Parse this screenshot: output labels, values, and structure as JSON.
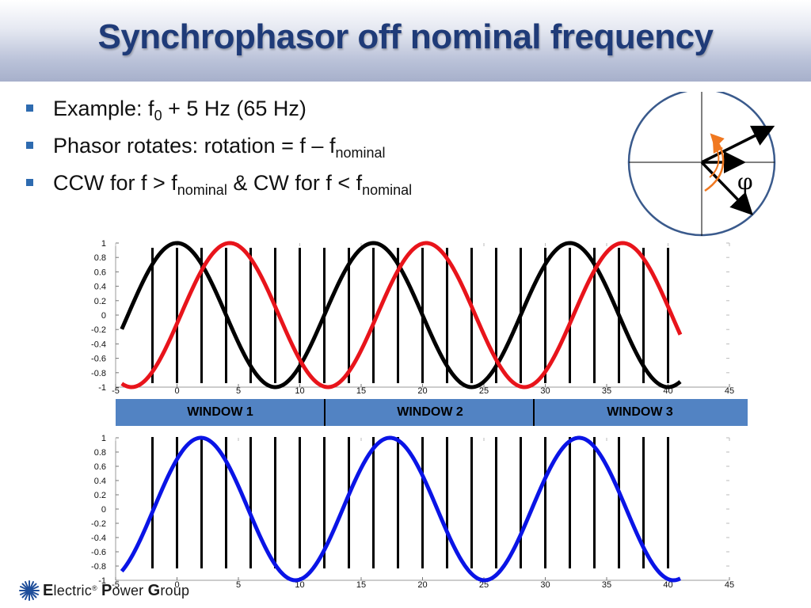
{
  "title": "Synchrophasor off nominal frequency",
  "bullets": [
    {
      "parts": [
        {
          "t": "Example: f"
        },
        {
          "t": "0",
          "sub": true
        },
        {
          "t": " + 5 Hz (65 Hz)"
        }
      ]
    },
    {
      "parts": [
        {
          "t": "Phasor rotates: rotation = f – f"
        },
        {
          "t": "nominal",
          "sub": true
        }
      ]
    },
    {
      "parts": [
        {
          "t": "CCW for  f > f"
        },
        {
          "t": "nominal",
          "sub": true
        },
        {
          "t": " & CW for  f < f"
        },
        {
          "t": "nominal",
          "sub": true
        }
      ]
    }
  ],
  "phasor_diagram": {
    "angle_symbol": "φ",
    "colors": {
      "circle": "#3a5a8c",
      "arrows": "#000000",
      "rotation_arc": "#f07820"
    }
  },
  "windows": {
    "labels": [
      "WINDOW 1",
      "WINDOW 2",
      "WINDOW 3"
    ],
    "bar_color": "#5283c3"
  },
  "logo": {
    "letters": [
      "E",
      "lectric",
      "P",
      "ower",
      "G",
      "roup"
    ],
    "icon": "starburst-icon"
  },
  "chart_data": [
    {
      "type": "line",
      "title": "",
      "xlabel": "",
      "ylabel": "",
      "xlim": [
        -5,
        45
      ],
      "ylim": [
        -1,
        1
      ],
      "x_ticks": [
        -5,
        0,
        5,
        10,
        15,
        20,
        25,
        30,
        35,
        40,
        45
      ],
      "y_ticks": [
        -1,
        -0.8,
        -0.6,
        -0.4,
        -0.2,
        0,
        0.2,
        0.4,
        0.6,
        0.8,
        1
      ],
      "grid": false,
      "series": [
        {
          "color": "#000000",
          "function": "sin",
          "period": 16.0,
          "phase_x": -4.0,
          "x_range": [
            -4.5,
            41
          ]
        },
        {
          "color": "#e8141b",
          "function": "sin",
          "period": 16.0,
          "phase_x": 0.3,
          "x_range": [
            -4.5,
            41
          ]
        }
      ],
      "sample_marks_x": [
        -2,
        0,
        2,
        4,
        6,
        8,
        10,
        12,
        14,
        16,
        18,
        20,
        22,
        24,
        26,
        28,
        30,
        32,
        34,
        36,
        38,
        40
      ],
      "sample_marks_color": "#000000"
    },
    {
      "type": "line",
      "title": "",
      "xlabel": "",
      "ylabel": "",
      "xlim": [
        -5,
        45
      ],
      "ylim": [
        -1,
        1
      ],
      "x_ticks": [
        -5,
        0,
        5,
        10,
        15,
        20,
        25,
        30,
        35,
        40,
        45
      ],
      "y_ticks": [
        -1,
        -0.8,
        -0.6,
        -0.4,
        -0.2,
        0,
        0.2,
        0.4,
        0.6,
        0.8,
        1
      ],
      "grid": false,
      "series": [
        {
          "color": "#0a14e6",
          "function": "sin",
          "period": 15.4,
          "phase_x": -1.9,
          "x_range": [
            -4.5,
            41
          ]
        }
      ],
      "sample_marks_x": [
        -2,
        0,
        2,
        4,
        6,
        8,
        10,
        12,
        14,
        16,
        18,
        20,
        22,
        24,
        26,
        28,
        30,
        32,
        34,
        36,
        38,
        40
      ],
      "sample_marks_color": "#000000"
    }
  ]
}
